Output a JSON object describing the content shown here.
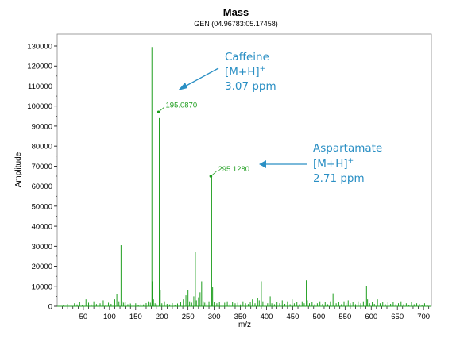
{
  "chart_data": {
    "type": "line",
    "title": "Mass",
    "subtitle": "GEN (04.96783:05.17458)",
    "xlabel": "m/z",
    "ylabel": "Amplitude",
    "xlim": [
      0,
      715
    ],
    "ylim": [
      0,
      130000
    ],
    "x_ticks": [
      50,
      100,
      150,
      200,
      250,
      300,
      350,
      400,
      450,
      500,
      550,
      600,
      650,
      700
    ],
    "y_ticks": [
      0,
      10000,
      20000,
      30000,
      40000,
      50000,
      60000,
      70000,
      80000,
      90000,
      100000,
      110000,
      120000,
      130000
    ],
    "series_color": "#1f9e1f",
    "annotation_color": "#2a8fc4",
    "peaks": [
      {
        "x": 12,
        "y": 800
      },
      {
        "x": 20,
        "y": 1200
      },
      {
        "x": 28,
        "y": 600
      },
      {
        "x": 33,
        "y": 1500
      },
      {
        "x": 38,
        "y": 900
      },
      {
        "x": 43,
        "y": 2200
      },
      {
        "x": 48,
        "y": 700
      },
      {
        "x": 55,
        "y": 3500
      },
      {
        "x": 60,
        "y": 1800
      },
      {
        "x": 65,
        "y": 900
      },
      {
        "x": 70,
        "y": 2500
      },
      {
        "x": 75,
        "y": 1100
      },
      {
        "x": 82,
        "y": 1500
      },
      {
        "x": 88,
        "y": 3000
      },
      {
        "x": 93,
        "y": 800
      },
      {
        "x": 98,
        "y": 1800
      },
      {
        "x": 103,
        "y": 1200
      },
      {
        "x": 110,
        "y": 3500
      },
      {
        "x": 114,
        "y": 6000
      },
      {
        "x": 118,
        "y": 2500
      },
      {
        "x": 122,
        "y": 30500
      },
      {
        "x": 124,
        "y": 2500
      },
      {
        "x": 127,
        "y": 1800
      },
      {
        "x": 131,
        "y": 2000
      },
      {
        "x": 135,
        "y": 1000
      },
      {
        "x": 140,
        "y": 1400
      },
      {
        "x": 145,
        "y": 800
      },
      {
        "x": 150,
        "y": 1500
      },
      {
        "x": 155,
        "y": 700
      },
      {
        "x": 160,
        "y": 1200
      },
      {
        "x": 165,
        "y": 900
      },
      {
        "x": 170,
        "y": 1600
      },
      {
        "x": 174,
        "y": 2500
      },
      {
        "x": 178,
        "y": 1800
      },
      {
        "x": 181,
        "y": 129500
      },
      {
        "x": 182,
        "y": 12500
      },
      {
        "x": 184,
        "y": 3500
      },
      {
        "x": 187,
        "y": 1500
      },
      {
        "x": 190,
        "y": 1000
      },
      {
        "x": 195.087,
        "y": 94000
      },
      {
        "x": 197,
        "y": 8000
      },
      {
        "x": 200,
        "y": 1500
      },
      {
        "x": 205,
        "y": 2500
      },
      {
        "x": 210,
        "y": 1200
      },
      {
        "x": 215,
        "y": 900
      },
      {
        "x": 220,
        "y": 1600
      },
      {
        "x": 225,
        "y": 800
      },
      {
        "x": 230,
        "y": 1400
      },
      {
        "x": 236,
        "y": 2000
      },
      {
        "x": 241,
        "y": 3500
      },
      {
        "x": 246,
        "y": 5500
      },
      {
        "x": 250,
        "y": 8000
      },
      {
        "x": 253,
        "y": 2500
      },
      {
        "x": 257,
        "y": 1800
      },
      {
        "x": 261,
        "y": 5000
      },
      {
        "x": 264,
        "y": 27000
      },
      {
        "x": 266,
        "y": 3000
      },
      {
        "x": 270,
        "y": 4500
      },
      {
        "x": 273,
        "y": 7000
      },
      {
        "x": 276,
        "y": 12500
      },
      {
        "x": 279,
        "y": 2500
      },
      {
        "x": 282,
        "y": 1800
      },
      {
        "x": 286,
        "y": 1200
      },
      {
        "x": 290,
        "y": 2500
      },
      {
        "x": 295.128,
        "y": 65500
      },
      {
        "x": 297,
        "y": 9500
      },
      {
        "x": 300,
        "y": 2000
      },
      {
        "x": 305,
        "y": 1500
      },
      {
        "x": 310,
        "y": 2200
      },
      {
        "x": 315,
        "y": 1000
      },
      {
        "x": 320,
        "y": 1800
      },
      {
        "x": 325,
        "y": 2500
      },
      {
        "x": 330,
        "y": 1200
      },
      {
        "x": 335,
        "y": 2000
      },
      {
        "x": 340,
        "y": 1500
      },
      {
        "x": 345,
        "y": 1800
      },
      {
        "x": 350,
        "y": 900
      },
      {
        "x": 355,
        "y": 2500
      },
      {
        "x": 360,
        "y": 1500
      },
      {
        "x": 365,
        "y": 1100
      },
      {
        "x": 369,
        "y": 2000
      },
      {
        "x": 373,
        "y": 3500
      },
      {
        "x": 378,
        "y": 1500
      },
      {
        "x": 383,
        "y": 4000
      },
      {
        "x": 386,
        "y": 3000
      },
      {
        "x": 390,
        "y": 12500
      },
      {
        "x": 393,
        "y": 2500
      },
      {
        "x": 397,
        "y": 2000
      },
      {
        "x": 402,
        "y": 1500
      },
      {
        "x": 407,
        "y": 5000
      },
      {
        "x": 410,
        "y": 1500
      },
      {
        "x": 415,
        "y": 1000
      },
      {
        "x": 420,
        "y": 2000
      },
      {
        "x": 425,
        "y": 1500
      },
      {
        "x": 430,
        "y": 3000
      },
      {
        "x": 435,
        "y": 1200
      },
      {
        "x": 440,
        "y": 2500
      },
      {
        "x": 445,
        "y": 1000
      },
      {
        "x": 449,
        "y": 3500
      },
      {
        "x": 453,
        "y": 1500
      },
      {
        "x": 458,
        "y": 2200
      },
      {
        "x": 463,
        "y": 1000
      },
      {
        "x": 468,
        "y": 2500
      },
      {
        "x": 472,
        "y": 1500
      },
      {
        "x": 476,
        "y": 13000
      },
      {
        "x": 478,
        "y": 3000
      },
      {
        "x": 482,
        "y": 1500
      },
      {
        "x": 487,
        "y": 2000
      },
      {
        "x": 492,
        "y": 1000
      },
      {
        "x": 497,
        "y": 1500
      },
      {
        "x": 502,
        "y": 2500
      },
      {
        "x": 507,
        "y": 1200
      },
      {
        "x": 512,
        "y": 2000
      },
      {
        "x": 517,
        "y": 1000
      },
      {
        "x": 522,
        "y": 2500
      },
      {
        "x": 527,
        "y": 6500
      },
      {
        "x": 529,
        "y": 2500
      },
      {
        "x": 533,
        "y": 1500
      },
      {
        "x": 538,
        "y": 2200
      },
      {
        "x": 543,
        "y": 1000
      },
      {
        "x": 548,
        "y": 2500
      },
      {
        "x": 552,
        "y": 1500
      },
      {
        "x": 556,
        "y": 3000
      },
      {
        "x": 560,
        "y": 1500
      },
      {
        "x": 565,
        "y": 2000
      },
      {
        "x": 570,
        "y": 1000
      },
      {
        "x": 575,
        "y": 2500
      },
      {
        "x": 580,
        "y": 1500
      },
      {
        "x": 585,
        "y": 2500
      },
      {
        "x": 591,
        "y": 10000
      },
      {
        "x": 593,
        "y": 3500
      },
      {
        "x": 597,
        "y": 1500
      },
      {
        "x": 602,
        "y": 2000
      },
      {
        "x": 606,
        "y": 1200
      },
      {
        "x": 612,
        "y": 3500
      },
      {
        "x": 617,
        "y": 1500
      },
      {
        "x": 622,
        "y": 2000
      },
      {
        "x": 627,
        "y": 1000
      },
      {
        "x": 632,
        "y": 2000
      },
      {
        "x": 637,
        "y": 1200
      },
      {
        "x": 642,
        "y": 2000
      },
      {
        "x": 647,
        "y": 1000
      },
      {
        "x": 652,
        "y": 1500
      },
      {
        "x": 657,
        "y": 2500
      },
      {
        "x": 662,
        "y": 1000
      },
      {
        "x": 667,
        "y": 1500
      },
      {
        "x": 672,
        "y": 800
      },
      {
        "x": 677,
        "y": 2000
      },
      {
        "x": 682,
        "y": 1000
      },
      {
        "x": 687,
        "y": 1500
      },
      {
        "x": 692,
        "y": 1200
      },
      {
        "x": 697,
        "y": 800
      },
      {
        "x": 702,
        "y": 1500
      },
      {
        "x": 707,
        "y": 700
      }
    ],
    "peak_labels": [
      {
        "x": 195.087,
        "y": 97000,
        "text": "195.0870"
      },
      {
        "x": 295.128,
        "y": 65000,
        "text": "295.1280"
      }
    ],
    "annotations": [
      {
        "compound": "Caffeine",
        "ion": "[M+H]",
        "charge": "+",
        "error": "3.07 ppm"
      },
      {
        "compound": "Aspartamate",
        "ion": "[M+H]",
        "charge": "+",
        "error": "2.71 ppm"
      }
    ]
  }
}
